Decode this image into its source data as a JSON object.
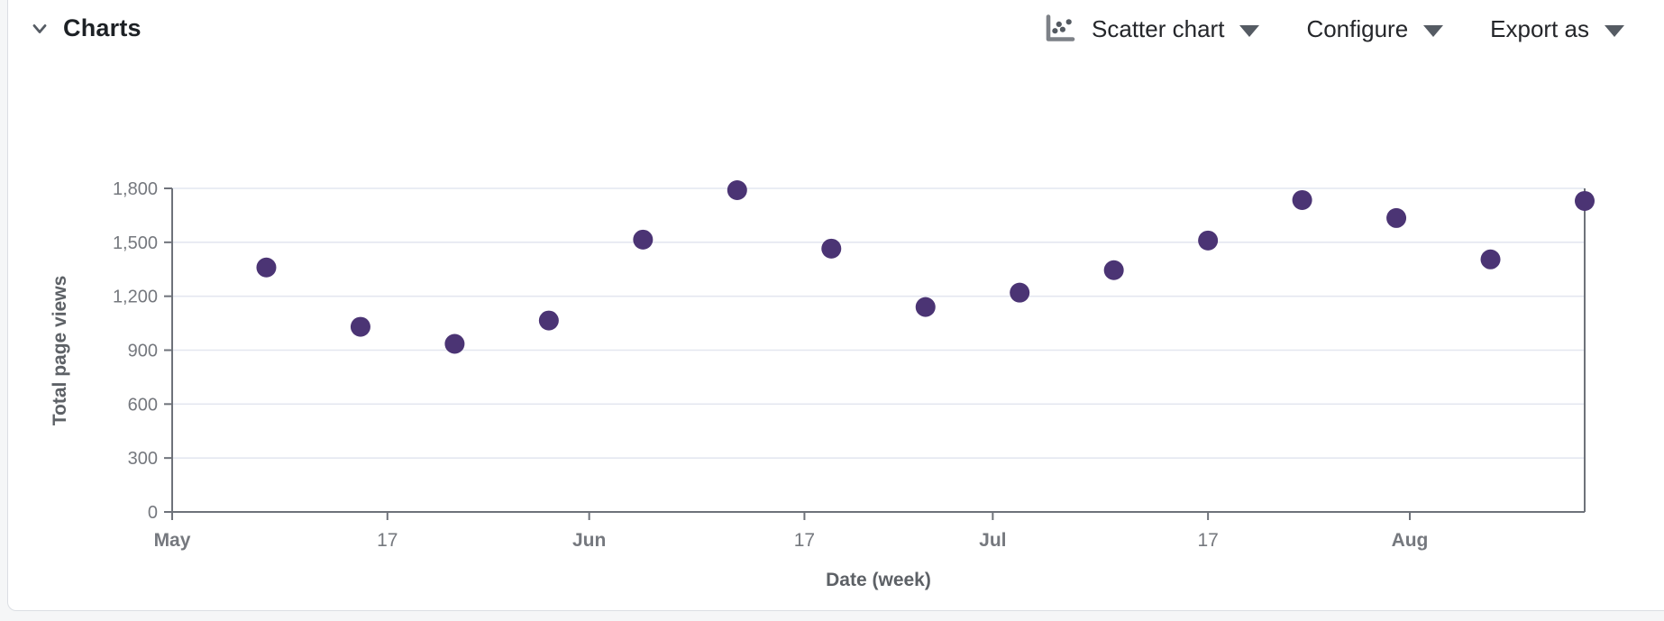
{
  "header": {
    "title": "Charts",
    "controls": {
      "chart_type": {
        "label": "Scatter chart"
      },
      "configure": {
        "label": "Configure"
      },
      "export": {
        "label": "Export as"
      }
    }
  },
  "chart_data": {
    "type": "scatter",
    "title": "",
    "xlabel": "Date (week)",
    "ylabel": "Total page views",
    "ylim": [
      0,
      1800
    ],
    "y_tick_step": 300,
    "y_tick_labels": [
      "0",
      "300",
      "600",
      "900",
      "1,200",
      "1,500",
      "1,800"
    ],
    "x_domain_days": [
      0,
      105
    ],
    "x_ticks": [
      {
        "day": 0,
        "label": "May",
        "bold": true
      },
      {
        "day": 16,
        "label": "17",
        "bold": false
      },
      {
        "day": 31,
        "label": "Jun",
        "bold": true
      },
      {
        "day": 47,
        "label": "17",
        "bold": false
      },
      {
        "day": 61,
        "label": "Jul",
        "bold": true
      },
      {
        "day": 77,
        "label": "17",
        "bold": false
      },
      {
        "day": 92,
        "label": "Aug",
        "bold": true
      }
    ],
    "points": [
      {
        "date": "May 8",
        "day": 7,
        "views": 1360
      },
      {
        "date": "May 15",
        "day": 14,
        "views": 1030
      },
      {
        "date": "May 22",
        "day": 21,
        "views": 935
      },
      {
        "date": "May 29",
        "day": 28,
        "views": 1065
      },
      {
        "date": "Jun 5",
        "day": 35,
        "views": 1515
      },
      {
        "date": "Jun 12",
        "day": 42,
        "views": 1790
      },
      {
        "date": "Jun 19",
        "day": 49,
        "views": 1465
      },
      {
        "date": "Jun 26",
        "day": 56,
        "views": 1140
      },
      {
        "date": "Jul 3",
        "day": 63,
        "views": 1220
      },
      {
        "date": "Jul 10",
        "day": 70,
        "views": 1345
      },
      {
        "date": "Jul 17",
        "day": 77,
        "views": 1510
      },
      {
        "date": "Jul 24",
        "day": 84,
        "views": 1735
      },
      {
        "date": "Jul 31",
        "day": 91,
        "views": 1635
      },
      {
        "date": "Aug 7",
        "day": 98,
        "views": 1405
      },
      {
        "date": "Aug 14",
        "day": 105,
        "views": 1730
      }
    ],
    "grid": "horizontal",
    "legend": "none",
    "colors": {
      "point": "#4b3474",
      "grid": "#e4e7f0",
      "axis": "#6e727a",
      "tick_label": "#75787e",
      "axis_title": "#5d6166"
    }
  }
}
